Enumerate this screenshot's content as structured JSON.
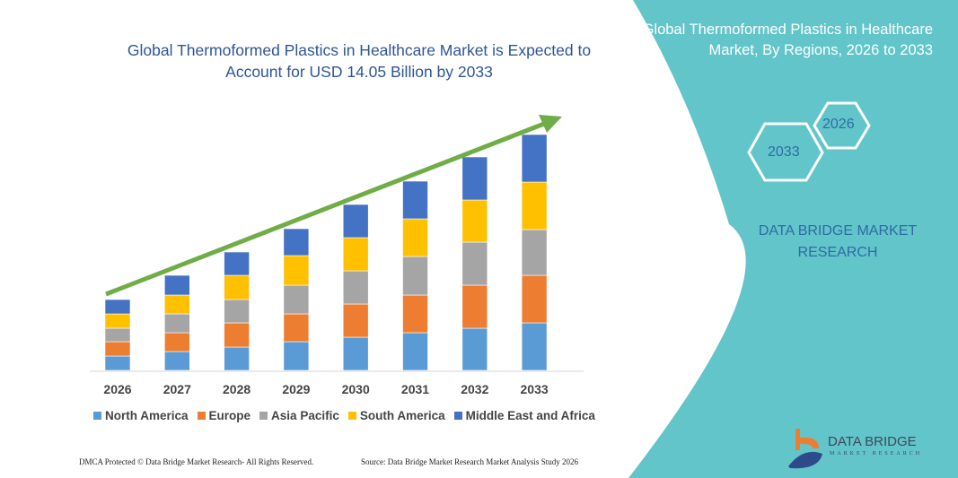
{
  "header": {
    "title": "Global Thermoformed Plastics in Healthcare Market is Expected to Account for USD 14.05 Billion by 2033"
  },
  "side_panel": {
    "title": "Global Thermoformed Plastics in Healthcare Market, By Regions, 2026 to 2033",
    "hex_start": "2026",
    "hex_end": "2033",
    "brand": "DATA BRIDGE MARKET RESEARCH",
    "color": "#62c5c9"
  },
  "logo": {
    "name": "DATA BRIDGE",
    "sub": "MARKET RESEARCH"
  },
  "footer": {
    "left": "DMCA Protected © Data Bridge Market Research- All Rights Reserved.",
    "right": "Source: Data Bridge Market Research Market Analysis Study 2026"
  },
  "chart_data": {
    "type": "bar",
    "stacked": true,
    "title": "Global Thermoformed Plastics in Healthcare Market is Expected to Account for USD 14.05 Billion by 2033",
    "categories": [
      "2026",
      "2027",
      "2028",
      "2029",
      "2030",
      "2031",
      "2032",
      "2033"
    ],
    "series": [
      {
        "name": "North America",
        "color": "#5b9bd5",
        "values": [
          16,
          21,
          26,
          32,
          37,
          42,
          47,
          53
        ]
      },
      {
        "name": "Europe",
        "color": "#ed7d31",
        "values": [
          16,
          21,
          27,
          31,
          37,
          42,
          48,
          53
        ]
      },
      {
        "name": "Asia Pacific",
        "color": "#a5a5a5",
        "values": [
          15,
          21,
          26,
          32,
          37,
          43,
          48,
          51
        ]
      },
      {
        "name": "South America",
        "color": "#ffc000",
        "values": [
          16,
          21,
          27,
          33,
          37,
          42,
          47,
          53
        ]
      },
      {
        "name": "Middle East and Africa",
        "color": "#4472c4",
        "values": [
          16,
          22,
          26,
          30,
          37,
          42,
          48,
          53
        ]
      }
    ],
    "legend": "bottom",
    "grid": false,
    "trend_arrow_color": "#70ad47"
  }
}
